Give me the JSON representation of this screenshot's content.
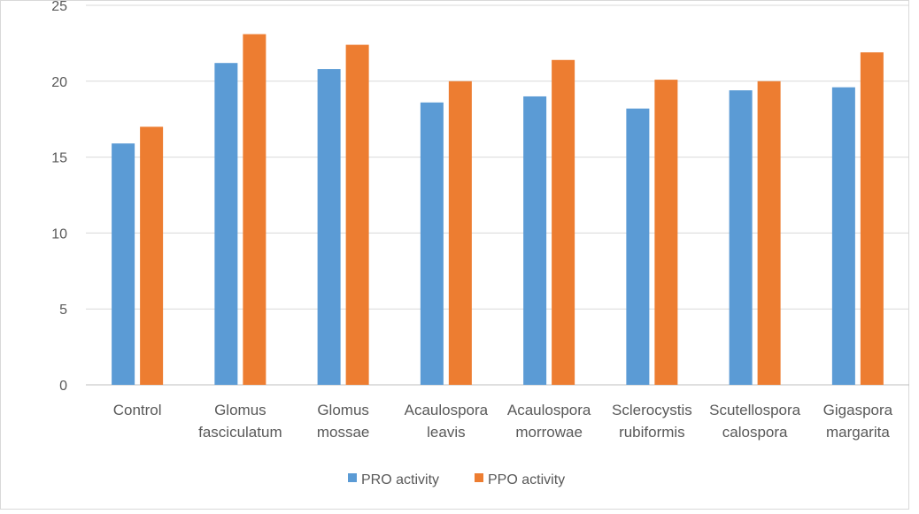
{
  "chart_data": {
    "type": "bar",
    "title": "",
    "xlabel": "",
    "ylabel": "",
    "ylim": [
      0,
      25
    ],
    "yticks": [
      "0",
      "5",
      "10",
      "15",
      "20",
      "25"
    ],
    "grid": true,
    "legend_position": "bottom",
    "categories": [
      [
        "Control"
      ],
      [
        "Glomus",
        "fasciculatum"
      ],
      [
        "Glomus",
        "mossae"
      ],
      [
        "Acaulospora",
        "leavis"
      ],
      [
        "Acaulospora",
        "morrowae"
      ],
      [
        "Sclerocystis",
        "rubiformis"
      ],
      [
        "Scutellospora",
        "calospora"
      ],
      [
        "Gigaspora",
        "margarita"
      ]
    ],
    "series": [
      {
        "name": "PRO activity",
        "color": "#5B9BD5",
        "values": [
          15.9,
          21.2,
          20.8,
          18.6,
          19.0,
          18.2,
          19.4,
          19.6
        ]
      },
      {
        "name": "PPO activity",
        "color": "#ED7D31",
        "values": [
          17.0,
          23.1,
          22.4,
          20.0,
          21.4,
          20.1,
          20.0,
          21.9
        ]
      }
    ]
  }
}
